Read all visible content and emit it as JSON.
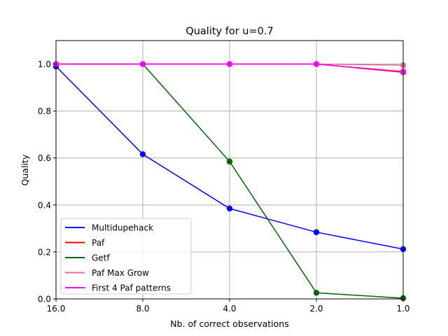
{
  "chart_data": {
    "type": "line",
    "title": "Quality for u=0.7",
    "xlabel": "Nb. of correct observations",
    "ylabel": "Quality",
    "x": [
      16.0,
      8.0,
      4.0,
      2.0,
      1.0
    ],
    "x_scale": "log2",
    "x_reversed": true,
    "xlim": [
      16.0,
      1.0
    ],
    "x_tick_labels": [
      "16.0",
      "8.0",
      "4.0",
      "2.0",
      "1.0"
    ],
    "ylim": [
      0.0,
      1.1
    ],
    "y_ticks": [
      0.0,
      0.2,
      0.4,
      0.6,
      0.8,
      1.0
    ],
    "y_tick_labels": [
      "0.0",
      "0.2",
      "0.4",
      "0.6",
      "0.8",
      "1.0"
    ],
    "grid": true,
    "legend_position": "lower-left",
    "series": [
      {
        "name": "Multidupehack",
        "color": "#0000ff",
        "values": [
          0.99,
          0.616,
          0.385,
          0.284,
          0.212
        ]
      },
      {
        "name": "Paf",
        "color": "#ff0000",
        "values": [
          1.0,
          1.0,
          1.0,
          1.0,
          0.965
        ]
      },
      {
        "name": "Getf",
        "color": "#006400",
        "values": [
          1.0,
          1.0,
          0.585,
          0.026,
          0.003
        ]
      },
      {
        "name": "Paf Max Grow",
        "color": "#db7093",
        "values": [
          1.0,
          1.0,
          1.0,
          1.0,
          0.995
        ]
      },
      {
        "name": "First 4 Paf patterns",
        "color": "#ff00ff",
        "values": [
          1.0,
          1.0,
          1.0,
          1.0,
          0.968
        ]
      }
    ]
  }
}
